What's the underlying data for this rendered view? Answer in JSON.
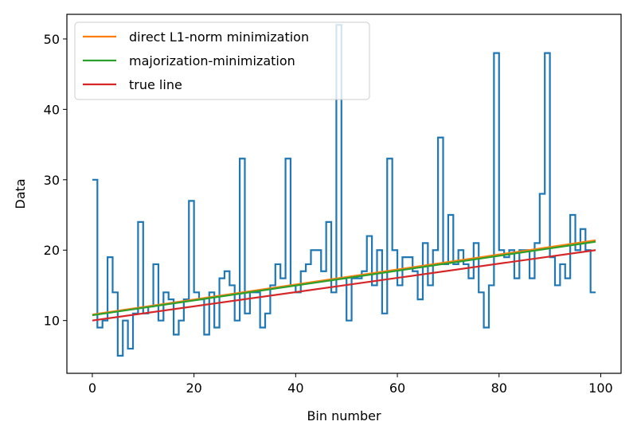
{
  "chart_data": {
    "type": "line",
    "xlabel": "Bin number",
    "ylabel": "Data",
    "xlim": [
      -5,
      104
    ],
    "ylim": [
      2.5,
      53.5
    ],
    "xticks": [
      0,
      20,
      40,
      60,
      80,
      100
    ],
    "yticks": [
      10,
      20,
      30,
      40,
      50
    ],
    "grid": false,
    "legend_position": "top-left",
    "step_series": {
      "color": "#1f77b4",
      "x": [
        0,
        1,
        2,
        3,
        4,
        5,
        6,
        7,
        8,
        9,
        10,
        11,
        12,
        13,
        14,
        15,
        16,
        17,
        18,
        19,
        20,
        21,
        22,
        23,
        24,
        25,
        26,
        27,
        28,
        29,
        30,
        31,
        32,
        33,
        34,
        35,
        36,
        37,
        38,
        39,
        40,
        41,
        42,
        43,
        44,
        45,
        46,
        47,
        48,
        49,
        50,
        51,
        52,
        53,
        54,
        55,
        56,
        57,
        58,
        59,
        60,
        61,
        62,
        63,
        64,
        65,
        66,
        67,
        68,
        69,
        70,
        71,
        72,
        73,
        74,
        75,
        76,
        77,
        78,
        79,
        80,
        81,
        82,
        83,
        84,
        85,
        86,
        87,
        88,
        89,
        90,
        91,
        92,
        93,
        94,
        95,
        96,
        97,
        98,
        99
      ],
      "values": [
        30,
        9,
        10,
        19,
        14,
        5,
        10,
        6,
        11,
        24,
        11,
        12,
        18,
        10,
        14,
        13,
        8,
        10,
        13,
        27,
        14,
        13,
        8,
        14,
        9,
        16,
        17,
        15,
        10,
        33,
        11,
        14,
        14,
        9,
        11,
        15,
        18,
        16,
        33,
        15,
        14,
        17,
        18,
        20,
        20,
        17,
        24,
        14,
        52,
        16,
        10,
        16,
        16,
        17,
        22,
        15,
        20,
        11,
        33,
        20,
        15,
        19,
        19,
        17,
        13,
        21,
        15,
        20,
        36,
        18,
        25,
        18,
        20,
        18,
        16,
        21,
        14,
        9,
        15,
        48,
        20,
        19,
        20,
        16,
        20,
        20,
        16,
        21,
        28,
        48,
        19,
        15,
        18,
        16,
        25,
        20,
        23,
        20,
        14,
        14
      ]
    },
    "series": [
      {
        "name": "direct L1-norm minimization",
        "color": "#ff7f0e",
        "x": [
          0,
          99
        ],
        "values": [
          10.85,
          21.4
        ]
      },
      {
        "name": "majorization-minimization",
        "color": "#2ca02c",
        "x": [
          0,
          99
        ],
        "values": [
          10.75,
          21.2
        ]
      },
      {
        "name": "true line",
        "color": "#d62728",
        "x": [
          0,
          99
        ],
        "values": [
          10.0,
          20.0
        ]
      }
    ]
  }
}
